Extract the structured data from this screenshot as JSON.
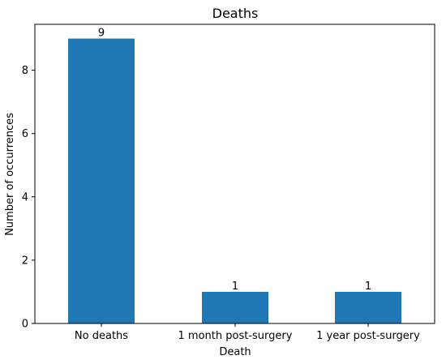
{
  "chart_data": {
    "type": "bar",
    "title": "Deaths",
    "xlabel": "Death",
    "ylabel": "Number of occurrences",
    "categories": [
      "No deaths",
      "1 month post-surgery",
      "1 year post-surgery"
    ],
    "values": [
      9,
      1,
      1
    ],
    "data_labels": [
      "9",
      "1",
      "1"
    ],
    "ylim": [
      0,
      9.45
    ],
    "yticks": [
      0,
      2,
      4,
      6,
      8
    ],
    "grid": false,
    "bar_color": "#1f77b4"
  }
}
